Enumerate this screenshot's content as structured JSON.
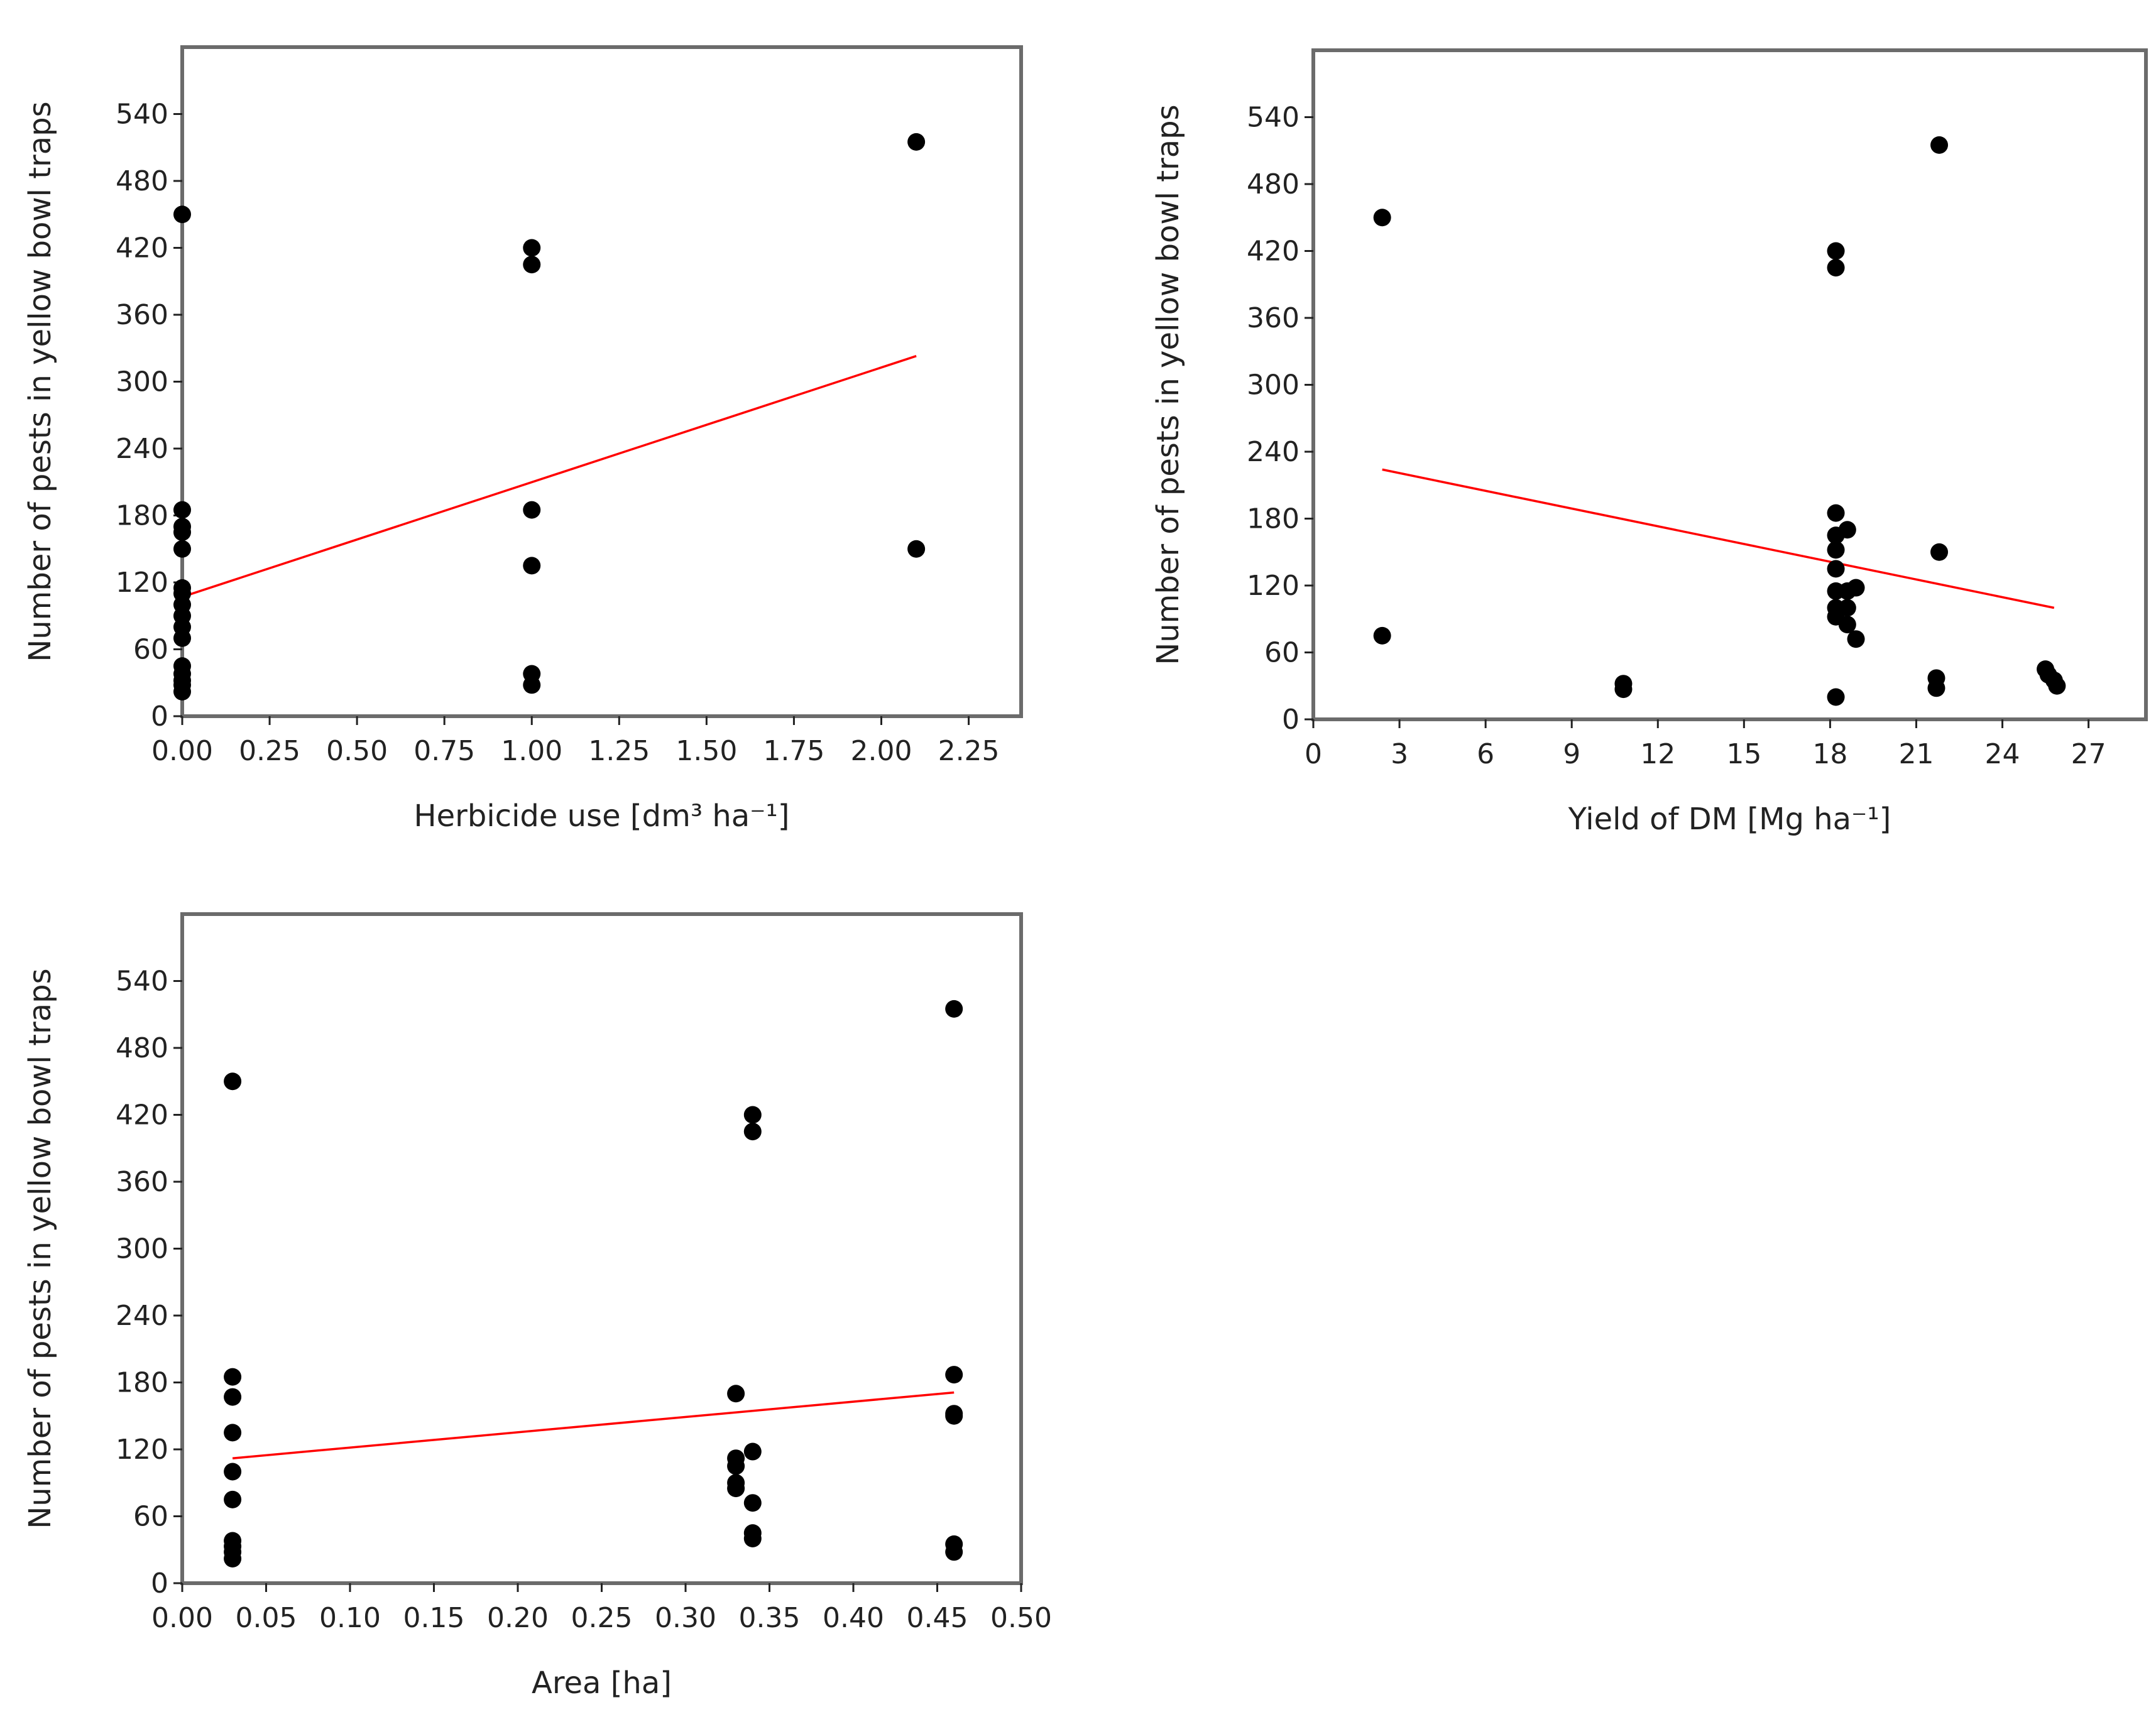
{
  "chart_data": [
    {
      "type": "scatter",
      "title": "",
      "xlabel": "Herbicide use [dm³ ha⁻¹]",
      "ylabel": "Number of pests in yellow bowl traps",
      "xlim": [
        0,
        2.4
      ],
      "ylim": [
        0,
        600
      ],
      "xticks": [
        "0.00",
        "0.25",
        "0.50",
        "0.75",
        "1.00",
        "1.25",
        "1.50",
        "1.75",
        "2.00",
        "2.25"
      ],
      "yticks": [
        "0",
        "60",
        "120",
        "180",
        "240",
        "300",
        "360",
        "420",
        "480",
        "540"
      ],
      "points": [
        [
          0,
          450
        ],
        [
          0,
          185
        ],
        [
          0,
          170
        ],
        [
          0,
          165
        ],
        [
          0,
          150
        ],
        [
          0,
          115
        ],
        [
          0,
          110
        ],
        [
          0,
          100
        ],
        [
          0,
          90
        ],
        [
          0,
          80
        ],
        [
          0,
          70
        ],
        [
          0,
          45
        ],
        [
          0,
          38
        ],
        [
          0,
          32
        ],
        [
          0,
          28
        ],
        [
          0,
          22
        ],
        [
          1,
          420
        ],
        [
          1,
          405
        ],
        [
          1,
          185
        ],
        [
          1,
          135
        ],
        [
          1,
          38
        ],
        [
          1,
          28
        ],
        [
          2.1,
          515
        ],
        [
          2.1,
          150
        ]
      ],
      "fit_line": {
        "color": "#ff0000",
        "x": [
          0,
          2.1
        ],
        "y": [
          107,
          323
        ]
      }
    },
    {
      "type": "scatter",
      "title": "",
      "xlabel": "Yield of DM  [Mg ha⁻¹]",
      "ylabel": "Number of pests in yellow bowl traps",
      "xlim": [
        0,
        29
      ],
      "ylim": [
        0,
        600
      ],
      "xticks": [
        "0",
        "3",
        "6",
        "9",
        "12",
        "15",
        "18",
        "21",
        "24",
        "27"
      ],
      "yticks": [
        "0",
        "60",
        "120",
        "180",
        "240",
        "300",
        "360",
        "420",
        "480",
        "540"
      ],
      "points": [
        [
          2.4,
          450
        ],
        [
          2.4,
          75
        ],
        [
          10.8,
          32
        ],
        [
          10.8,
          27
        ],
        [
          18.2,
          420
        ],
        [
          18.2,
          405
        ],
        [
          18.2,
          185
        ],
        [
          18.2,
          165
        ],
        [
          18.2,
          152
        ],
        [
          18.2,
          135
        ],
        [
          18.2,
          115
        ],
        [
          18.2,
          100
        ],
        [
          18.2,
          92
        ],
        [
          18.2,
          20
        ],
        [
          18.6,
          170
        ],
        [
          18.6,
          115
        ],
        [
          18.6,
          100
        ],
        [
          18.6,
          85
        ],
        [
          18.9,
          118
        ],
        [
          18.9,
          72
        ],
        [
          21.8,
          515
        ],
        [
          21.8,
          150
        ],
        [
          21.7,
          37
        ],
        [
          21.7,
          28
        ],
        [
          25.5,
          45
        ],
        [
          25.6,
          40
        ],
        [
          25.8,
          35
        ],
        [
          25.9,
          30
        ]
      ],
      "fit_line": {
        "color": "#ff0000",
        "x": [
          2.4,
          25.8
        ],
        "y": [
          224,
          100
        ]
      }
    },
    {
      "type": "scatter",
      "title": "",
      "xlabel": "Area [ha]",
      "ylabel": "Number of pests in yellow bowl traps",
      "xlim": [
        0,
        0.5
      ],
      "ylim": [
        0,
        600
      ],
      "xticks": [
        "0.00",
        "0.05",
        "0.10",
        "0.15",
        "0.20",
        "0.25",
        "0.30",
        "0.35",
        "0.40",
        "0.45",
        "0.50"
      ],
      "yticks": [
        "0",
        "60",
        "120",
        "180",
        "240",
        "300",
        "360",
        "420",
        "480",
        "540"
      ],
      "points": [
        [
          0.03,
          450
        ],
        [
          0.03,
          185
        ],
        [
          0.03,
          167
        ],
        [
          0.03,
          135
        ],
        [
          0.03,
          100
        ],
        [
          0.03,
          75
        ],
        [
          0.03,
          38
        ],
        [
          0.03,
          33
        ],
        [
          0.03,
          28
        ],
        [
          0.03,
          22
        ],
        [
          0.33,
          170
        ],
        [
          0.33,
          112
        ],
        [
          0.33,
          105
        ],
        [
          0.33,
          90
        ],
        [
          0.33,
          85
        ],
        [
          0.34,
          420
        ],
        [
          0.34,
          405
        ],
        [
          0.34,
          118
        ],
        [
          0.34,
          72
        ],
        [
          0.34,
          45
        ],
        [
          0.34,
          40
        ],
        [
          0.46,
          515
        ],
        [
          0.46,
          187
        ],
        [
          0.46,
          152
        ],
        [
          0.46,
          150
        ],
        [
          0.46,
          35
        ],
        [
          0.46,
          28
        ]
      ],
      "fit_line": {
        "color": "#ff0000",
        "x": [
          0.03,
          0.46
        ],
        "y": [
          112,
          171
        ]
      }
    }
  ]
}
